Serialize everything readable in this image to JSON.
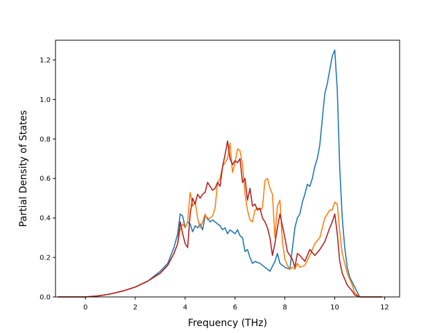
{
  "chart_data": {
    "type": "line",
    "xlabel": "Frequency (THz)",
    "ylabel": "Partial Density of States",
    "xlim": [
      -1.2,
      12.6
    ],
    "ylim": [
      0.0,
      1.3
    ],
    "xticks": [
      "0",
      "2",
      "4",
      "6",
      "8",
      "10",
      "12"
    ],
    "yticks": [
      "0.0",
      "0.2",
      "0.4",
      "0.6",
      "0.8",
      "1.0",
      "1.2"
    ],
    "grid": false,
    "series": [
      {
        "color": "#1f77b4",
        "x": [
          -1.1,
          0,
          0.5,
          1,
          1.5,
          2,
          2.5,
          3,
          3.3,
          3.55,
          3.7,
          3.8,
          3.9,
          4.0,
          4.1,
          4.2,
          4.3,
          4.4,
          4.5,
          4.6,
          4.7,
          4.8,
          4.9,
          5.0,
          5.1,
          5.2,
          5.3,
          5.4,
          5.5,
          5.6,
          5.7,
          5.8,
          5.9,
          6.0,
          6.1,
          6.2,
          6.3,
          6.4,
          6.5,
          6.6,
          6.7,
          6.8,
          7.0,
          7.2,
          7.4,
          7.6,
          7.7,
          7.8,
          8.0,
          8.2,
          8.4,
          8.5,
          8.6,
          8.7,
          8.8,
          8.9,
          9.0,
          9.1,
          9.2,
          9.3,
          9.4,
          9.5,
          9.6,
          9.7,
          9.8,
          9.9,
          10.0,
          10.1,
          10.2,
          10.3,
          10.4,
          10.5,
          10.6,
          10.8,
          11.0,
          11.5,
          11.9
        ],
        "y": [
          0.0,
          0.0,
          0.005,
          0.015,
          0.03,
          0.05,
          0.08,
          0.13,
          0.17,
          0.25,
          0.32,
          0.42,
          0.41,
          0.35,
          0.38,
          0.37,
          0.33,
          0.36,
          0.35,
          0.37,
          0.34,
          0.41,
          0.4,
          0.38,
          0.39,
          0.38,
          0.37,
          0.36,
          0.34,
          0.35,
          0.32,
          0.34,
          0.33,
          0.32,
          0.34,
          0.31,
          0.3,
          0.23,
          0.24,
          0.2,
          0.17,
          0.18,
          0.17,
          0.15,
          0.13,
          0.18,
          0.22,
          0.17,
          0.15,
          0.14,
          0.35,
          0.4,
          0.42,
          0.48,
          0.52,
          0.57,
          0.56,
          0.6,
          0.66,
          0.7,
          0.77,
          0.9,
          1.03,
          1.08,
          1.15,
          1.22,
          1.25,
          1.05,
          0.65,
          0.4,
          0.25,
          0.15,
          0.1,
          0.05,
          0.0,
          0.0,
          0.0
        ]
      },
      {
        "color": "#ff7f0e",
        "x": [
          -1.1,
          0,
          0.5,
          1,
          1.5,
          2,
          2.5,
          3,
          3.3,
          3.55,
          3.7,
          3.8,
          3.9,
          4.0,
          4.1,
          4.2,
          4.3,
          4.4,
          4.5,
          4.6,
          4.7,
          4.8,
          4.9,
          5.0,
          5.1,
          5.2,
          5.3,
          5.4,
          5.5,
          5.6,
          5.7,
          5.8,
          5.9,
          6.0,
          6.1,
          6.2,
          6.3,
          6.4,
          6.5,
          6.6,
          6.7,
          6.8,
          6.9,
          7.0,
          7.1,
          7.2,
          7.3,
          7.4,
          7.5,
          7.6,
          7.7,
          7.8,
          7.9,
          8.0,
          8.1,
          8.2,
          8.3,
          8.4,
          8.5,
          8.6,
          8.8,
          9.0,
          9.2,
          9.4,
          9.6,
          9.8,
          9.9,
          10.0,
          10.1,
          10.2,
          10.3,
          10.5,
          10.7,
          10.8,
          11.0,
          11.5,
          11.9
        ],
        "y": [
          0.0,
          0.0,
          0.005,
          0.015,
          0.03,
          0.05,
          0.08,
          0.12,
          0.16,
          0.22,
          0.27,
          0.34,
          0.37,
          0.35,
          0.38,
          0.53,
          0.46,
          0.48,
          0.4,
          0.35,
          0.38,
          0.42,
          0.39,
          0.4,
          0.41,
          0.45,
          0.58,
          0.6,
          0.66,
          0.68,
          0.7,
          0.78,
          0.63,
          0.68,
          0.75,
          0.74,
          0.67,
          0.52,
          0.44,
          0.39,
          0.38,
          0.44,
          0.45,
          0.44,
          0.45,
          0.59,
          0.6,
          0.55,
          0.52,
          0.3,
          0.46,
          0.49,
          0.28,
          0.19,
          0.16,
          0.14,
          0.15,
          0.14,
          0.17,
          0.15,
          0.16,
          0.21,
          0.27,
          0.3,
          0.4,
          0.44,
          0.44,
          0.48,
          0.47,
          0.33,
          0.22,
          0.12,
          0.06,
          0.02,
          0.0,
          0.0,
          0.0
        ]
      },
      {
        "color": "#b22222",
        "x": [
          -1.1,
          0,
          0.5,
          1,
          1.5,
          2,
          2.5,
          3,
          3.3,
          3.55,
          3.7,
          3.8,
          3.9,
          4.0,
          4.1,
          4.2,
          4.3,
          4.4,
          4.5,
          4.6,
          4.7,
          4.8,
          4.9,
          5.0,
          5.1,
          5.2,
          5.3,
          5.4,
          5.5,
          5.6,
          5.7,
          5.8,
          5.9,
          6.0,
          6.1,
          6.2,
          6.3,
          6.4,
          6.5,
          6.6,
          6.7,
          6.8,
          6.9,
          7.0,
          7.1,
          7.2,
          7.3,
          7.4,
          7.5,
          7.6,
          7.7,
          7.8,
          7.9,
          8.0,
          8.1,
          8.2,
          8.3,
          8.4,
          8.5,
          8.6,
          8.8,
          9.0,
          9.2,
          9.4,
          9.6,
          9.8,
          9.9,
          10.0,
          10.1,
          10.2,
          10.3,
          10.5,
          10.7,
          10.8,
          11.0,
          11.5,
          11.9
        ],
        "y": [
          0.0,
          0.0,
          0.005,
          0.015,
          0.03,
          0.05,
          0.08,
          0.12,
          0.16,
          0.22,
          0.27,
          0.38,
          0.32,
          0.27,
          0.25,
          0.42,
          0.5,
          0.47,
          0.52,
          0.5,
          0.52,
          0.53,
          0.58,
          0.56,
          0.54,
          0.55,
          0.58,
          0.56,
          0.66,
          0.72,
          0.79,
          0.7,
          0.67,
          0.69,
          0.68,
          0.7,
          0.58,
          0.6,
          0.49,
          0.55,
          0.46,
          0.47,
          0.44,
          0.45,
          0.4,
          0.38,
          0.35,
          0.3,
          0.21,
          0.27,
          0.35,
          0.42,
          0.36,
          0.3,
          0.23,
          0.21,
          0.19,
          0.15,
          0.22,
          0.21,
          0.18,
          0.24,
          0.21,
          0.24,
          0.28,
          0.35,
          0.38,
          0.42,
          0.32,
          0.18,
          0.12,
          0.06,
          0.03,
          0.01,
          0.0,
          0.0,
          0.0
        ]
      }
    ]
  }
}
